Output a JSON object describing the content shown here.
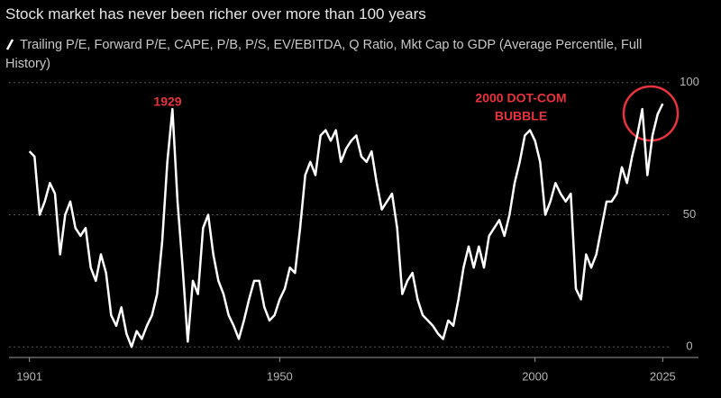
{
  "chart_data": {
    "type": "line",
    "title": "Stock market has never been richer over more than 100 years",
    "annotations": [
      "1929",
      "2000 DOT-COM",
      "BUBBLE"
    ],
    "x": [
      1901,
      1902,
      1903,
      1904,
      1905,
      1906,
      1907,
      1908,
      1909,
      1910,
      1911,
      1912,
      1913,
      1914,
      1915,
      1916,
      1917,
      1918,
      1919,
      1920,
      1921,
      1922,
      1923,
      1924,
      1925,
      1926,
      1927,
      1928,
      1929,
      1930,
      1931,
      1932,
      1933,
      1934,
      1935,
      1936,
      1937,
      1938,
      1939,
      1940,
      1941,
      1942,
      1943,
      1944,
      1945,
      1946,
      1947,
      1948,
      1949,
      1950,
      1951,
      1952,
      1953,
      1954,
      1955,
      1956,
      1957,
      1958,
      1959,
      1960,
      1961,
      1962,
      1963,
      1964,
      1965,
      1966,
      1967,
      1968,
      1969,
      1970,
      1971,
      1972,
      1973,
      1974,
      1975,
      1976,
      1977,
      1978,
      1979,
      1980,
      1981,
      1982,
      1983,
      1984,
      1985,
      1986,
      1987,
      1988,
      1989,
      1990,
      1991,
      1992,
      1993,
      1994,
      1995,
      1996,
      1997,
      1998,
      1999,
      2000,
      2001,
      2002,
      2003,
      2004,
      2005,
      2006,
      2007,
      2008,
      2009,
      2010,
      2011,
      2012,
      2013,
      2014,
      2015,
      2016,
      2017,
      2018,
      2019,
      2020,
      2021,
      2022,
      2023,
      2024,
      2025
    ],
    "series": [
      {
        "name": "Trailing P/E, Forward P/E, CAPE, P/B, P/S, EV/EBITDA, Q Ratio, Mkt Cap to GDP (Average Percentile, Full History)",
        "color": "#ffffff",
        "values": [
          74,
          72,
          50,
          55,
          62,
          58,
          35,
          50,
          55,
          45,
          42,
          45,
          30,
          25,
          35,
          28,
          12,
          8,
          15,
          5,
          0,
          6,
          3,
          8,
          12,
          20,
          40,
          70,
          90,
          55,
          30,
          2,
          25,
          20,
          45,
          50,
          35,
          25,
          20,
          12,
          8,
          3,
          10,
          18,
          25,
          25,
          15,
          10,
          12,
          18,
          22,
          30,
          28,
          45,
          65,
          70,
          65,
          80,
          82,
          78,
          82,
          70,
          75,
          78,
          80,
          72,
          70,
          74,
          62,
          52,
          55,
          58,
          45,
          20,
          25,
          28,
          18,
          12,
          10,
          8,
          5,
          3,
          10,
          8,
          18,
          30,
          38,
          30,
          38,
          30,
          42,
          45,
          48,
          42,
          50,
          62,
          70,
          80,
          82,
          78,
          70,
          50,
          55,
          62,
          58,
          55,
          58,
          22,
          18,
          35,
          30,
          35,
          45,
          55,
          55,
          58,
          68,
          62,
          72,
          80,
          90,
          65,
          80,
          88,
          92
        ]
      }
    ],
    "xlim": [
      1897,
      2032
    ],
    "xticks": [
      1901,
      1950,
      2000,
      2025
    ],
    "ylim": [
      -4,
      104
    ],
    "yticks": [
      0,
      50,
      100
    ],
    "grid": true
  }
}
